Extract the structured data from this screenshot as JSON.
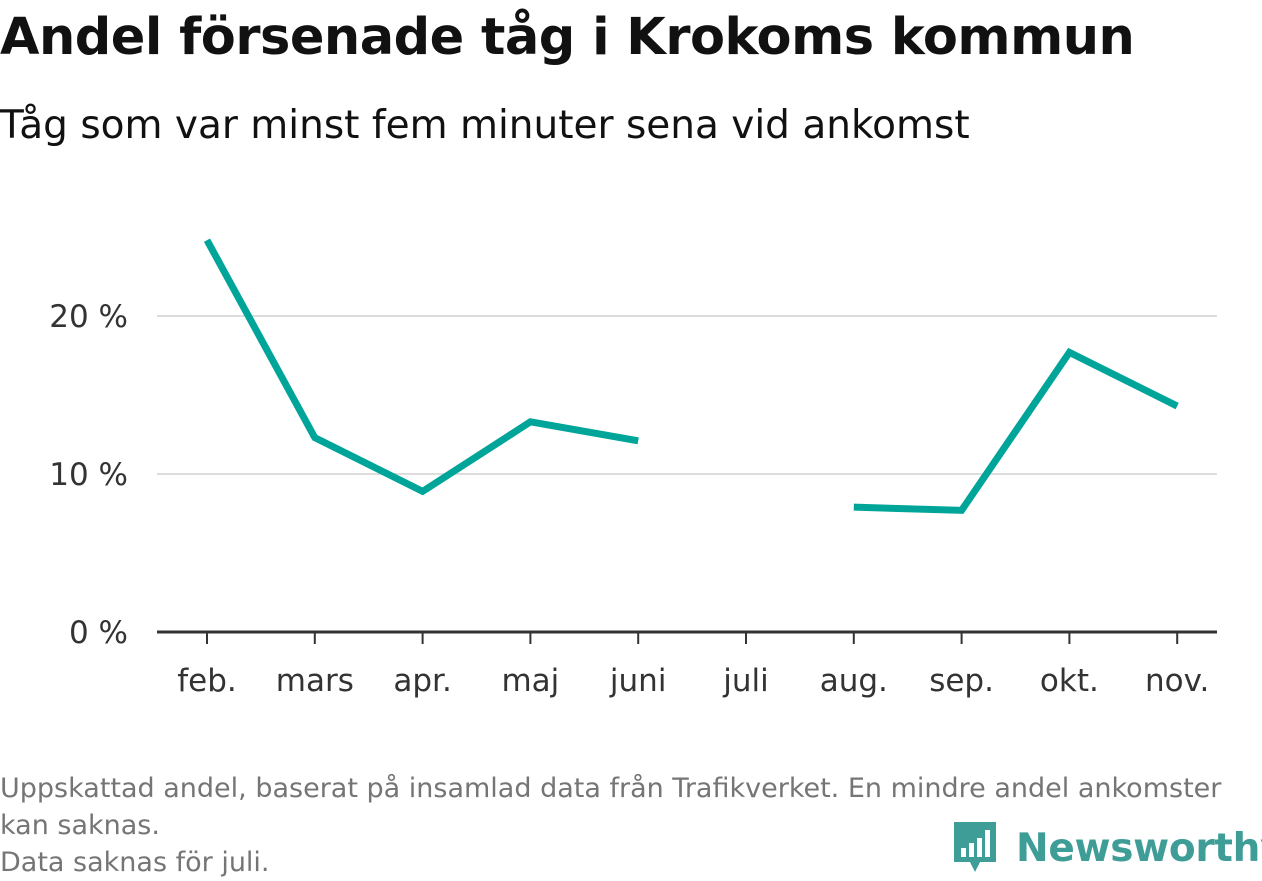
{
  "chart_data": {
    "type": "line",
    "title": "Andel försenade tåg i Krokoms kommun",
    "subtitle": "Tåg som var minst fem minuter sena vid ankomst",
    "categories": [
      "feb.",
      "mars",
      "apr.",
      "maj",
      "juni",
      "juli",
      "aug.",
      "sep.",
      "okt.",
      "nov."
    ],
    "series": [
      {
        "values": [
          24.8,
          12.3,
          8.9,
          13.3,
          12.1,
          null,
          7.9,
          7.7,
          17.7,
          14.3
        ]
      }
    ],
    "yticks": [
      {
        "value": 0,
        "label": "0 %"
      },
      {
        "value": 10,
        "label": "10 %"
      },
      {
        "value": 20,
        "label": "20 %"
      }
    ],
    "ylim": [
      0,
      27
    ],
    "grid": true,
    "line_color": "#00a59a"
  },
  "source_note": {
    "line1": "Uppskattad andel, baserat på insamlad data från Trafikverket. En mindre andel ankomster kan saknas.",
    "line2": "Data saknas för juli."
  },
  "logo": {
    "icon": "newsworthy-bar-icon",
    "text": "Newsworthy",
    "color": "#3f9d97"
  }
}
